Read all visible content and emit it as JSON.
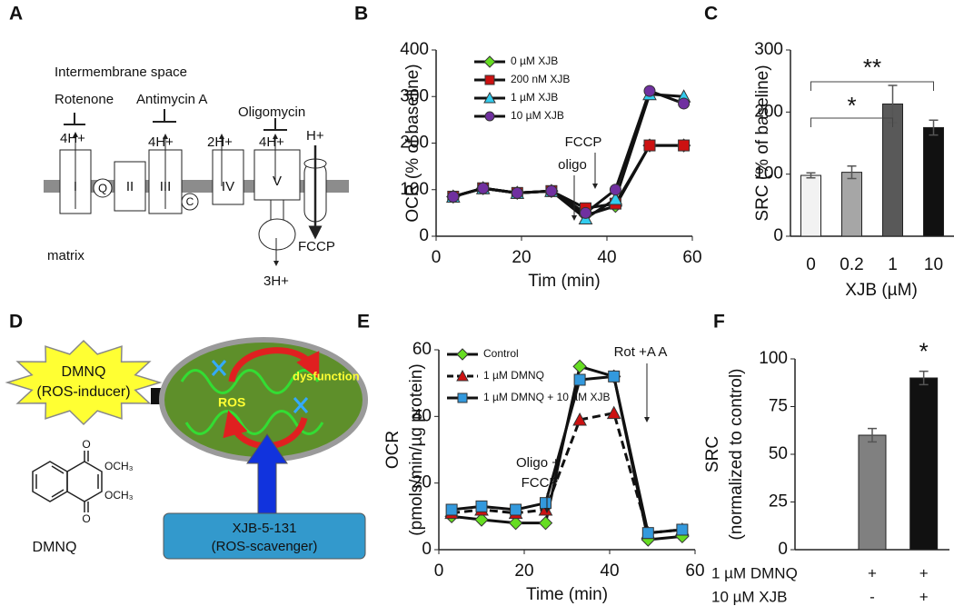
{
  "panels": [
    "A",
    "B",
    "C",
    "D",
    "E",
    "F"
  ],
  "panel_a": {
    "intermembrane": "Intermembrane space",
    "rotenone": "Rotenone",
    "antimycin": "Antimycin A",
    "oligomycin": "Oligomycin",
    "protons": [
      "4H+",
      "4H+",
      "2H+",
      "4H+",
      "H+"
    ],
    "complexes": [
      "I",
      "II",
      "III",
      "IV",
      "V"
    ],
    "q": "Q",
    "c": "C",
    "matrix": "matrix",
    "fccp": "FCCP",
    "atp_protons": "3H+"
  },
  "panel_d": {
    "inducer": [
      "DMNQ",
      "(ROS-inducer)"
    ],
    "ros": "ROS",
    "dysfunction": "dysfunction",
    "scavenger": [
      "XJB-5-131",
      "(ROS-scavenger)"
    ],
    "compound": "DMNQ",
    "groups": [
      "OCH₃",
      "OCH₃"
    ]
  },
  "chart_data": [
    {
      "type": "line",
      "x": [
        4,
        11,
        19,
        27,
        35,
        42,
        50,
        58
      ],
      "xlim": [
        0,
        60
      ],
      "xticks": [
        0,
        20,
        40,
        60
      ],
      "ylim": [
        0,
        400
      ],
      "yticks": [
        0,
        100,
        200,
        300,
        400
      ],
      "xlabel": "Tim (min)",
      "ylabel": "OCR (% of baseline)",
      "annotations": [
        "oligo",
        "FCCP"
      ],
      "series": [
        {
          "name": "0 µM XJB",
          "color": "#66dd22",
          "marker": "diamond",
          "values": [
            85,
            103,
            93,
            97,
            45,
            65,
            195,
            195
          ]
        },
        {
          "name": "200 nM XJB",
          "color": "#cc1111",
          "marker": "square",
          "values": [
            85,
            103,
            93,
            97,
            60,
            70,
            195,
            195
          ]
        },
        {
          "name": "1 µM XJB",
          "color": "#33ccee",
          "marker": "triangle",
          "values": [
            85,
            103,
            93,
            97,
            38,
            80,
            305,
            300
          ]
        },
        {
          "name": "10 µM XJB",
          "color": "#7030a0",
          "marker": "circle",
          "values": [
            85,
            103,
            93,
            97,
            50,
            100,
            312,
            285
          ]
        }
      ]
    },
    {
      "type": "bar",
      "categories": [
        "0",
        "0.2",
        "1",
        "10"
      ],
      "values": [
        98,
        103,
        213,
        175
      ],
      "errors": [
        4,
        10,
        30,
        12
      ],
      "colors": [
        "#f2f2f2",
        "#a6a6a6",
        "#595959",
        "#111111"
      ],
      "ylim": [
        0,
        300
      ],
      "yticks": [
        0,
        100,
        200,
        300
      ],
      "xlabel": "XJB (µM)",
      "ylabel": "SRC (% of baseline)",
      "annotations": [
        "*",
        "**"
      ]
    },
    {
      "type": "line",
      "x": [
        3,
        10,
        18,
        25,
        33,
        41,
        49,
        57
      ],
      "xlim": [
        0,
        60
      ],
      "xticks": [
        0,
        20,
        40,
        60
      ],
      "ylim": [
        0,
        60
      ],
      "yticks": [
        0,
        20,
        40,
        60
      ],
      "xlabel": "Time (min)",
      "ylabel": [
        "OCR",
        "(pmols/min/µg protein)"
      ],
      "annotations": [
        "Oligo +",
        "FCCP",
        "Rot +A A"
      ],
      "series": [
        {
          "name": "Control",
          "color": "#66dd22",
          "marker": "diamond",
          "values": [
            10,
            9,
            8,
            8,
            55,
            52,
            3,
            4
          ]
        },
        {
          "name": "1 µM DMNQ",
          "color": "#cc1111",
          "marker": "triangle",
          "dashed": true,
          "values": [
            11,
            12,
            11,
            12,
            39,
            41,
            5,
            6
          ]
        },
        {
          "name": "1 µM DMNQ + 10 µM XJB",
          "color": "#3399dd",
          "marker": "square",
          "values": [
            12,
            13,
            12,
            14,
            51,
            52,
            5,
            6
          ]
        }
      ]
    },
    {
      "type": "bar",
      "values": [
        60,
        90
      ],
      "errors": [
        3.5,
        3.5
      ],
      "colors": [
        "#808080",
        "#111111"
      ],
      "ylim": [
        0,
        100
      ],
      "yticks": [
        0,
        25,
        50,
        75,
        100
      ],
      "ylabel": [
        "SRC",
        "(normalized to control)"
      ],
      "annotations": [
        "*"
      ],
      "conditions": [
        {
          "label": "1 µM DMNQ",
          "values": [
            "+",
            "+"
          ]
        },
        {
          "label": "10 µM XJB",
          "values": [
            "-",
            "+"
          ]
        }
      ]
    }
  ]
}
